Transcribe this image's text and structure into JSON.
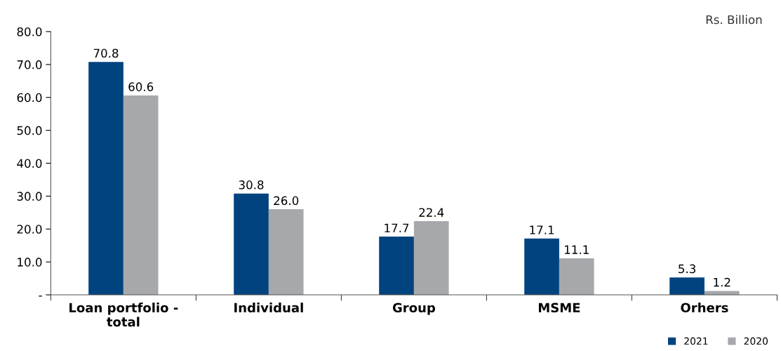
{
  "chart_data": {
    "type": "bar",
    "categories": [
      "Loan portfolio - total",
      "Individual",
      "Group",
      "MSME",
      "Orhers"
    ],
    "series": [
      {
        "name": "2021",
        "color": "#00437f",
        "values": [
          70.8,
          30.8,
          17.7,
          17.1,
          5.3
        ],
        "value_labels": [
          "70.8",
          "30.8",
          "17.7",
          "17.1",
          "5.3"
        ]
      },
      {
        "name": "2020",
        "color": "#a7a8ab",
        "values": [
          60.6,
          26.0,
          22.4,
          11.1,
          1.2
        ],
        "value_labels": [
          "60.6",
          "26.0",
          "22.4",
          "11.1",
          "1.2"
        ]
      }
    ],
    "ylim": [
      0,
      80
    ],
    "yticks": [
      {
        "value": 0,
        "label": "-"
      },
      {
        "value": 10,
        "label": "10.0"
      },
      {
        "value": 20,
        "label": "20.0"
      },
      {
        "value": 30,
        "label": "30.0"
      },
      {
        "value": 40,
        "label": "40.0"
      },
      {
        "value": 50,
        "label": "50.0"
      },
      {
        "value": 60,
        "label": "60.0"
      },
      {
        "value": 70,
        "label": "70.0"
      },
      {
        "value": 80,
        "label": "80.0"
      }
    ],
    "grid": false,
    "legend": "bottom right",
    "annotations": [
      "Rs. Billion"
    ]
  }
}
